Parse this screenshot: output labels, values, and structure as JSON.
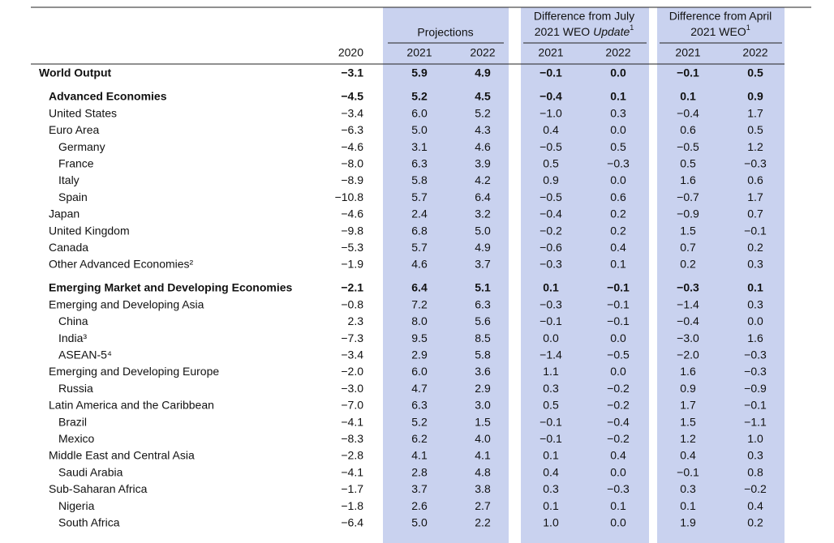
{
  "header": {
    "projections": "Projections",
    "july": {
      "line1": "Difference from July",
      "line2": "2021 WEO",
      "italic": "Update",
      "note": "1"
    },
    "april": {
      "line1": "Difference from April",
      "line2": "2021 WEO",
      "note": "1"
    },
    "years": [
      "2020",
      "2021",
      "2022",
      "2021",
      "2022",
      "2021",
      "2022"
    ]
  },
  "table": {
    "groups": [
      [
        {
          "label": "World Output",
          "values": [
            "−3.1",
            "5.9",
            "4.9",
            "−0.1",
            "0.0",
            "−0.1",
            "0.5"
          ]
        }
      ],
      [
        {
          "label": "Advanced Economies",
          "values": [
            "−4.5",
            "5.2",
            "4.5",
            "−0.4",
            "0.1",
            "0.1",
            "0.9"
          ]
        },
        {
          "label": "United States",
          "values": [
            "−3.4",
            "6.0",
            "5.2",
            "−1.0",
            "0.3",
            "−0.4",
            "1.7"
          ]
        },
        {
          "label": "Euro Area",
          "values": [
            "−6.3",
            "5.0",
            "4.3",
            "0.4",
            "0.0",
            "0.6",
            "0.5"
          ]
        },
        {
          "label": "Germany",
          "values": [
            "−4.6",
            "3.1",
            "4.6",
            "−0.5",
            "0.5",
            "−0.5",
            "1.2"
          ]
        },
        {
          "label": "France",
          "values": [
            "−8.0",
            "6.3",
            "3.9",
            "0.5",
            "−0.3",
            "0.5",
            "−0.3"
          ]
        },
        {
          "label": "Italy",
          "values": [
            "−8.9",
            "5.8",
            "4.2",
            "0.9",
            "0.0",
            "1.6",
            "0.6"
          ]
        },
        {
          "label": "Spain",
          "values": [
            "−10.8",
            "5.7",
            "6.4",
            "−0.5",
            "0.6",
            "−0.7",
            "1.7"
          ]
        },
        {
          "label": "Japan",
          "values": [
            "−4.6",
            "2.4",
            "3.2",
            "−0.4",
            "0.2",
            "−0.9",
            "0.7"
          ]
        },
        {
          "label": "United Kingdom",
          "values": [
            "−9.8",
            "6.8",
            "5.0",
            "−0.2",
            "0.2",
            "1.5",
            "−0.1"
          ]
        },
        {
          "label": "Canada",
          "values": [
            "−5.3",
            "5.7",
            "4.9",
            "−0.6",
            "0.4",
            "0.7",
            "0.2"
          ]
        },
        {
          "label": "Other Advanced Economies²",
          "values": [
            "−1.9",
            "4.6",
            "3.7",
            "−0.3",
            "0.1",
            "0.2",
            "0.3"
          ]
        }
      ],
      [
        {
          "label": "Emerging Market and Developing Economies",
          "values": [
            "−2.1",
            "6.4",
            "5.1",
            "0.1",
            "−0.1",
            "−0.3",
            "0.1"
          ]
        },
        {
          "label": "Emerging and Developing Asia",
          "values": [
            "−0.8",
            "7.2",
            "6.3",
            "−0.3",
            "−0.1",
            "−1.4",
            "0.3"
          ]
        },
        {
          "label": "China",
          "values": [
            "2.3",
            "8.0",
            "5.6",
            "−0.1",
            "−0.1",
            "−0.4",
            "0.0"
          ]
        },
        {
          "label": "India³",
          "values": [
            "−7.3",
            "9.5",
            "8.5",
            "0.0",
            "0.0",
            "−3.0",
            "1.6"
          ]
        },
        {
          "label": "ASEAN-5⁴",
          "values": [
            "−3.4",
            "2.9",
            "5.8",
            "−1.4",
            "−0.5",
            "−2.0",
            "−0.3"
          ]
        },
        {
          "label": "Emerging and Developing Europe",
          "values": [
            "−2.0",
            "6.0",
            "3.6",
            "1.1",
            "0.0",
            "1.6",
            "−0.3"
          ]
        },
        {
          "label": "Russia",
          "values": [
            "−3.0",
            "4.7",
            "2.9",
            "0.3",
            "−0.2",
            "0.9",
            "−0.9"
          ]
        },
        {
          "label": "Latin America and the Caribbean",
          "values": [
            "−7.0",
            "6.3",
            "3.0",
            "0.5",
            "−0.2",
            "1.7",
            "−0.1"
          ]
        },
        {
          "label": "Brazil",
          "values": [
            "−4.1",
            "5.2",
            "1.5",
            "−0.1",
            "−0.4",
            "1.5",
            "−1.1"
          ]
        },
        {
          "label": "Mexico",
          "values": [
            "−8.3",
            "6.2",
            "4.0",
            "−0.1",
            "−0.2",
            "1.2",
            "1.0"
          ]
        },
        {
          "label": "Middle East and Central Asia",
          "values": [
            "−2.8",
            "4.1",
            "4.1",
            "0.1",
            "0.4",
            "0.4",
            "0.3"
          ]
        },
        {
          "label": "Saudi Arabia",
          "values": [
            "−4.1",
            "2.8",
            "4.8",
            "0.4",
            "0.0",
            "−0.1",
            "0.8"
          ]
        },
        {
          "label": "Sub-Saharan Africa",
          "values": [
            "−1.7",
            "3.7",
            "3.8",
            "0.3",
            "−0.3",
            "0.3",
            "−0.2"
          ]
        },
        {
          "label": "Nigeria",
          "values": [
            "−1.8",
            "2.6",
            "2.7",
            "0.1",
            "0.1",
            "0.1",
            "0.4"
          ]
        },
        {
          "label": "South Africa",
          "values": [
            "−6.4",
            "5.0",
            "2.2",
            "1.0",
            "0.0",
            "1.9",
            "0.2"
          ]
        }
      ]
    ]
  }
}
